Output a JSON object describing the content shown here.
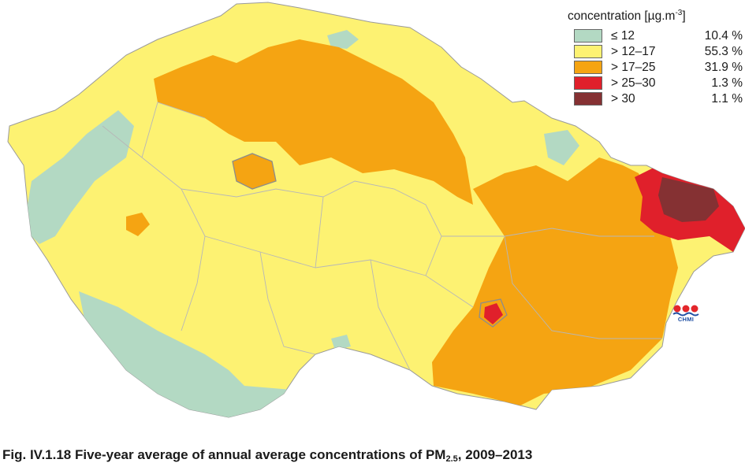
{
  "legend": {
    "title": "concentration [µg.m",
    "title_exp": "-3",
    "title_close": "]",
    "classes": [
      {
        "label": "≤ 12",
        "percent": "10.4 %",
        "color": "#b3d9c3"
      },
      {
        "label": "> 12–17",
        "percent": "55.3 %",
        "color": "#fdf272"
      },
      {
        "label": "> 17–25",
        "percent": "31.9 %",
        "color": "#f5a412"
      },
      {
        "label": "> 25–30",
        "percent": "1.3 %",
        "color": "#e0202b"
      },
      {
        "label": "> 30",
        "percent": "1.1 %",
        "color": "#853133"
      }
    ]
  },
  "logo": {
    "text": "CHMI"
  },
  "caption": {
    "prefix": "Fig. IV.1.18  Five-year average of annual average concentrations of PM",
    "subscript": "2.5",
    "suffix": ", 2009–2013"
  }
}
